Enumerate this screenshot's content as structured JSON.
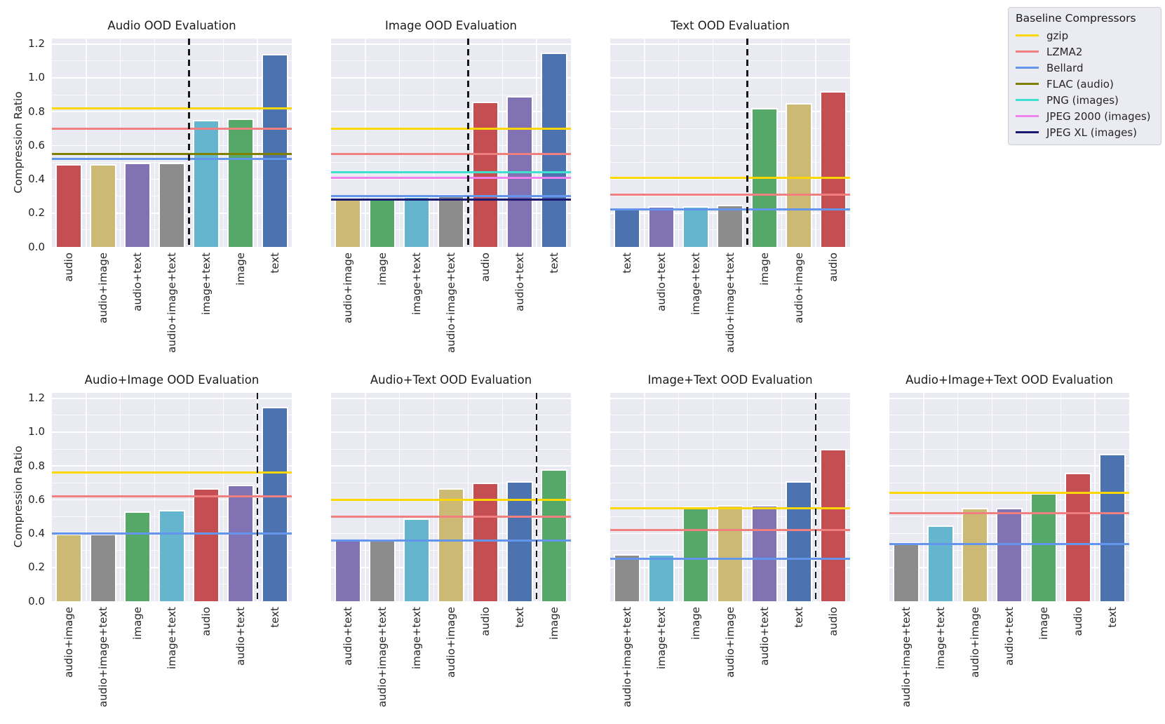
{
  "figure": {
    "ylabel": "Compression Ratio",
    "yticks": [
      "0.0",
      "0.2",
      "0.4",
      "0.6",
      "0.8",
      "1.0",
      "1.2"
    ],
    "ymax_render": 1.232,
    "background": "#ffffff",
    "axes_background": "#eaeaf2",
    "grid": true
  },
  "legend": {
    "title": "Baseline Compressors",
    "position": "upper-right",
    "entries": [
      {
        "label": "gzip",
        "color": "#FFD700"
      },
      {
        "label": "LZMA2",
        "color": "#F08080"
      },
      {
        "label": "Bellard",
        "color": "#6495ED"
      },
      {
        "label": "FLAC (audio)",
        "color": "#808000"
      },
      {
        "label": "PNG (images)",
        "color": "#40E0D0"
      },
      {
        "label": "JPEG 2000 (images)",
        "color": "#EE82EE"
      },
      {
        "label": "JPEG XL (images)",
        "color": "#191970"
      }
    ]
  },
  "bar_colors": {
    "audio": "#C44E52",
    "audio+image": "#CCB974",
    "audio+text": "#8172B3",
    "audio+image+text": "#8C8C8C",
    "image+text": "#64B5CD",
    "image": "#55A868",
    "text": "#4C72B0"
  },
  "chart_data": [
    {
      "type": "bar",
      "title": "Audio OOD Evaluation",
      "row": 0,
      "col": 0,
      "categories": [
        "audio",
        "audio+image",
        "audio+text",
        "audio+image+text",
        "image+text",
        "image",
        "text"
      ],
      "values": [
        0.49,
        0.49,
        0.5,
        0.5,
        0.75,
        0.76,
        1.14
      ],
      "divider_after_index": 3,
      "baselines": [
        {
          "name": "gzip",
          "value": 0.82
        },
        {
          "name": "LZMA2",
          "value": 0.7
        },
        {
          "name": "FLAC (audio)",
          "value": 0.55
        },
        {
          "name": "Bellard",
          "value": 0.52
        }
      ],
      "ylabel": "Compression Ratio",
      "ylim": [
        0.0,
        1.23
      ]
    },
    {
      "type": "bar",
      "title": "Image OOD Evaluation",
      "row": 0,
      "col": 1,
      "categories": [
        "audio+image",
        "image",
        "image+text",
        "audio+image+text",
        "audio",
        "audio+text",
        "text"
      ],
      "values": [
        0.29,
        0.29,
        0.3,
        0.31,
        0.86,
        0.89,
        1.15
      ],
      "divider_after_index": 3,
      "baselines": [
        {
          "name": "gzip",
          "value": 0.7
        },
        {
          "name": "LZMA2",
          "value": 0.55
        },
        {
          "name": "PNG (images)",
          "value": 0.44
        },
        {
          "name": "JPEG 2000 (images)",
          "value": 0.41
        },
        {
          "name": "Bellard",
          "value": 0.3
        },
        {
          "name": "JPEG XL (images)",
          "value": 0.28
        }
      ],
      "ylabel": "Compression Ratio",
      "ylim": [
        0.0,
        1.23
      ]
    },
    {
      "type": "bar",
      "title": "Text OOD Evaluation",
      "row": 0,
      "col": 2,
      "categories": [
        "text",
        "audio+text",
        "image+text",
        "audio+image+text",
        "image",
        "audio+image",
        "audio"
      ],
      "values": [
        0.23,
        0.24,
        0.24,
        0.25,
        0.82,
        0.85,
        0.92
      ],
      "divider_after_index": 3,
      "baselines": [
        {
          "name": "gzip",
          "value": 0.41
        },
        {
          "name": "LZMA2",
          "value": 0.31
        },
        {
          "name": "Bellard",
          "value": 0.22
        }
      ],
      "ylabel": "Compression Ratio",
      "ylim": [
        0.0,
        1.23
      ]
    },
    {
      "type": "bar",
      "title": "Audio+Image OOD Evaluation",
      "row": 1,
      "col": 0,
      "categories": [
        "audio+image",
        "audio+image+text",
        "image",
        "image+text",
        "audio",
        "audio+text",
        "text"
      ],
      "values": [
        0.4,
        0.4,
        0.53,
        0.54,
        0.67,
        0.69,
        1.15
      ],
      "divider_after_index": 5,
      "baselines": [
        {
          "name": "gzip",
          "value": 0.76
        },
        {
          "name": "LZMA2",
          "value": 0.62
        },
        {
          "name": "Bellard",
          "value": 0.4
        }
      ],
      "ylabel": "Compression Ratio",
      "ylim": [
        0.0,
        1.23
      ]
    },
    {
      "type": "bar",
      "title": "Audio+Text OOD Evaluation",
      "row": 1,
      "col": 1,
      "categories": [
        "audio+text",
        "audio+image+text",
        "image+text",
        "audio+image",
        "audio",
        "text",
        "image"
      ],
      "values": [
        0.36,
        0.37,
        0.49,
        0.67,
        0.7,
        0.71,
        0.78
      ],
      "divider_after_index": 5,
      "baselines": [
        {
          "name": "gzip",
          "value": 0.6
        },
        {
          "name": "LZMA2",
          "value": 0.5
        },
        {
          "name": "Bellard",
          "value": 0.36
        }
      ],
      "ylabel": "Compression Ratio",
      "ylim": [
        0.0,
        1.23
      ]
    },
    {
      "type": "bar",
      "title": "Image+Text OOD Evaluation",
      "row": 1,
      "col": 2,
      "categories": [
        "audio+image+text",
        "image+text",
        "image",
        "audio+image",
        "audio+text",
        "text",
        "audio"
      ],
      "values": [
        0.28,
        0.28,
        0.56,
        0.57,
        0.57,
        0.71,
        0.9
      ],
      "divider_after_index": 5,
      "baselines": [
        {
          "name": "gzip",
          "value": 0.55
        },
        {
          "name": "LZMA2",
          "value": 0.42
        },
        {
          "name": "Bellard",
          "value": 0.25
        }
      ],
      "ylabel": "Compression Ratio",
      "ylim": [
        0.0,
        1.23
      ]
    },
    {
      "type": "bar",
      "title": "Audio+Image+Text OOD Evaluation",
      "row": 1,
      "col": 3,
      "categories": [
        "audio+image+text",
        "image+text",
        "audio+image",
        "audio+text",
        "image",
        "audio",
        "text"
      ],
      "values": [
        0.35,
        0.45,
        0.55,
        0.55,
        0.64,
        0.76,
        0.87
      ],
      "divider_after_index": null,
      "baselines": [
        {
          "name": "gzip",
          "value": 0.64
        },
        {
          "name": "LZMA2",
          "value": 0.52
        },
        {
          "name": "Bellard",
          "value": 0.34
        }
      ],
      "ylabel": "Compression Ratio",
      "ylim": [
        0.0,
        1.23
      ]
    }
  ]
}
